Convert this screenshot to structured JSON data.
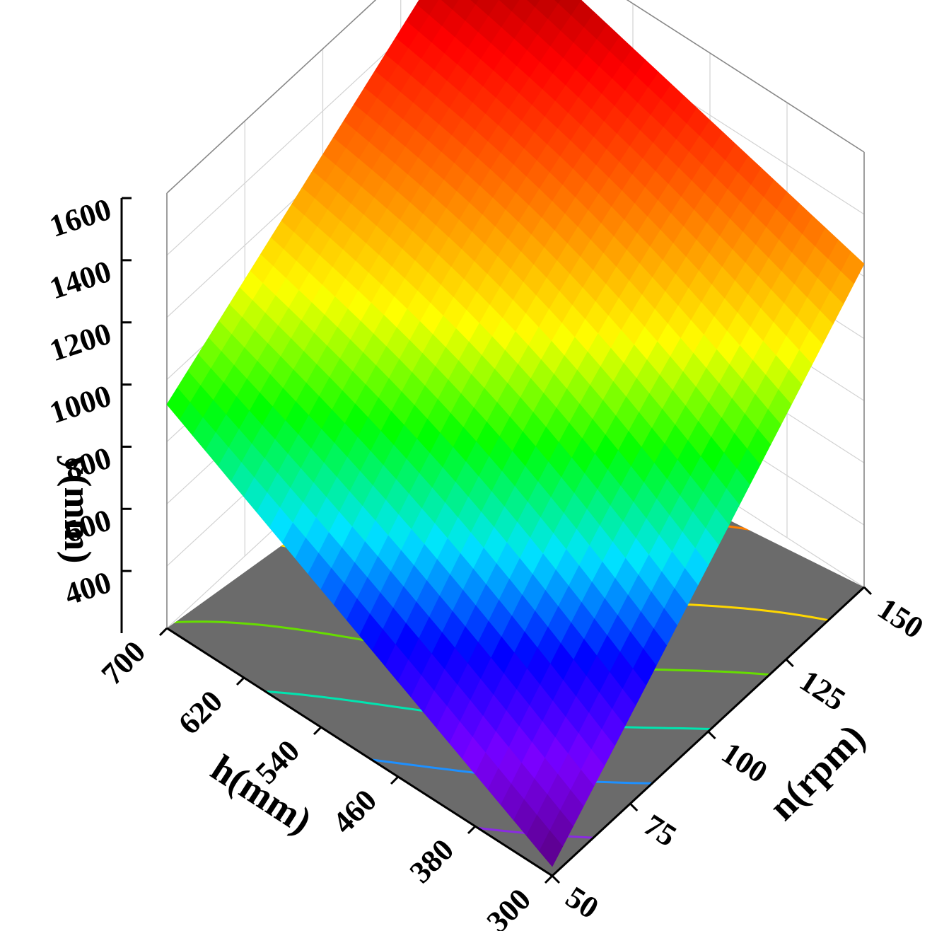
{
  "chart_data": {
    "type": "surface3d",
    "title": "",
    "z_axis": {
      "label": "y(mm)",
      "ticks": [
        "400",
        "600",
        "800",
        "1000",
        "1200",
        "1400",
        "1600"
      ],
      "range": [
        200,
        1600
      ]
    },
    "h_axis": {
      "label": "h(mm)",
      "ticks": [
        "300",
        "380",
        "460",
        "540",
        "620",
        "700"
      ],
      "range": [
        300,
        700
      ]
    },
    "n_axis": {
      "label": "n(rpm)",
      "ticks": [
        "50",
        "75",
        "100",
        "125",
        "150"
      ],
      "range": [
        50,
        150
      ]
    },
    "corner_values": [
      {
        "h": 300,
        "n": 50,
        "y": 230
      },
      {
        "h": 700,
        "n": 50,
        "y": 920
      },
      {
        "h": 300,
        "n": 150,
        "y": 1240
      },
      {
        "h": 700,
        "n": 150,
        "y": 1600
      }
    ],
    "colormap": [
      "#5a0080",
      "#7a00ff",
      "#0000ff",
      "#00e5ff",
      "#00ff00",
      "#ffff00",
      "#ff7f00",
      "#ff0000",
      "#6a0000"
    ],
    "floor_color": "#6b6b6b",
    "contour_colors": [
      "#8a2be2",
      "#1e90ff",
      "#00e5b0",
      "#66dd00",
      "#ffd700",
      "#ff7f00",
      "#ff2000"
    ],
    "grid": true
  }
}
